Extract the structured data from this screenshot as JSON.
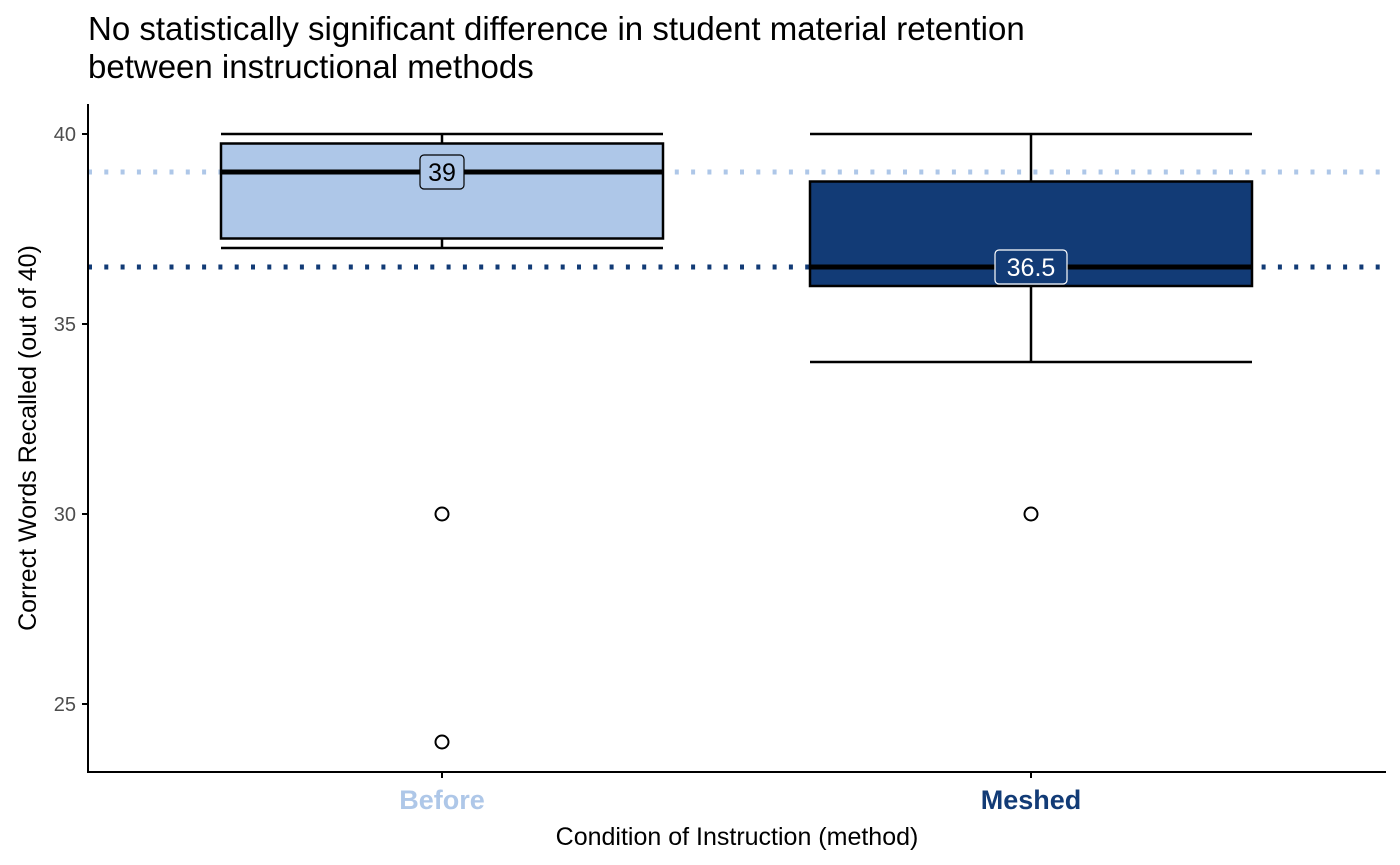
{
  "chart_data": {
    "type": "boxplot",
    "title_line1": "No statistically significant difference in student material retention",
    "title_line2": "between instructional methods",
    "xlabel": "Condition of Instruction (method)",
    "ylabel": "Correct Words Recalled (out of 40)",
    "ylim": [
      23.2,
      40.8
    ],
    "yticks": [
      "25",
      "30",
      "35",
      "40"
    ],
    "grid": false,
    "legend": "none",
    "categories": [
      "Before",
      "Meshed"
    ],
    "series": [
      {
        "category": "Before",
        "color": "#aec7e8",
        "label_color": "#aec7e8",
        "min": 37,
        "q1": 37.25,
        "median": 39,
        "q3": 39.75,
        "max": 40,
        "outliers": [
          30,
          24
        ],
        "median_label": "39",
        "median_label_fill": "#aec7e8",
        "median_label_text_color": "#000000"
      },
      {
        "category": "Meshed",
        "color": "#123b76",
        "label_color": "#123b76",
        "min": 34,
        "q1": 36,
        "median": 36.5,
        "q3": 38.75,
        "max": 40,
        "outliers": [
          30
        ],
        "median_label": "36.5",
        "median_label_fill": "#123b76",
        "median_label_text_color": "#ffffff"
      }
    ],
    "reference_lines": [
      {
        "value": 39,
        "color": "#aec7e8",
        "style": "dotted"
      },
      {
        "value": 36.5,
        "color": "#123b76",
        "style": "dotted"
      }
    ]
  }
}
